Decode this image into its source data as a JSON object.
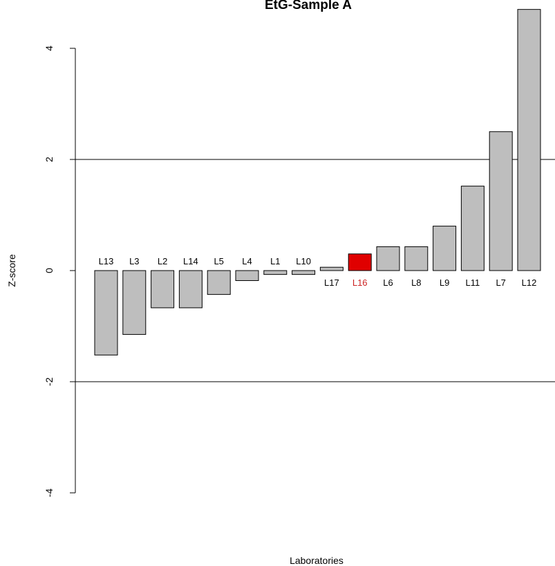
{
  "chart_data": {
    "type": "bar",
    "title": "EtG-Sample A",
    "xlabel": "Laboratories",
    "ylabel": "Z-score",
    "ylim": [
      -4,
      4
    ],
    "yticks": [
      "4",
      "2",
      "0",
      "-2",
      "-4"
    ],
    "reference_lines": [
      2,
      -2
    ],
    "categories": [
      "L13",
      "L3",
      "L2",
      "L14",
      "L5",
      "L4",
      "L1",
      "L10",
      "L17",
      "L16",
      "L6",
      "L8",
      "L9",
      "L11",
      "L7",
      "L12"
    ],
    "values": [
      -1.52,
      -1.15,
      -0.67,
      -0.67,
      -0.43,
      -0.18,
      -0.07,
      -0.07,
      0.06,
      0.3,
      0.43,
      0.43,
      0.8,
      1.52,
      2.5,
      4.7
    ],
    "highlight": "L16",
    "colors": {
      "bar": "#bebebe",
      "highlight_bar": "#e00000",
      "highlight_label": "#cc2222",
      "line": "#000000"
    },
    "grid": false,
    "legend": "none"
  }
}
